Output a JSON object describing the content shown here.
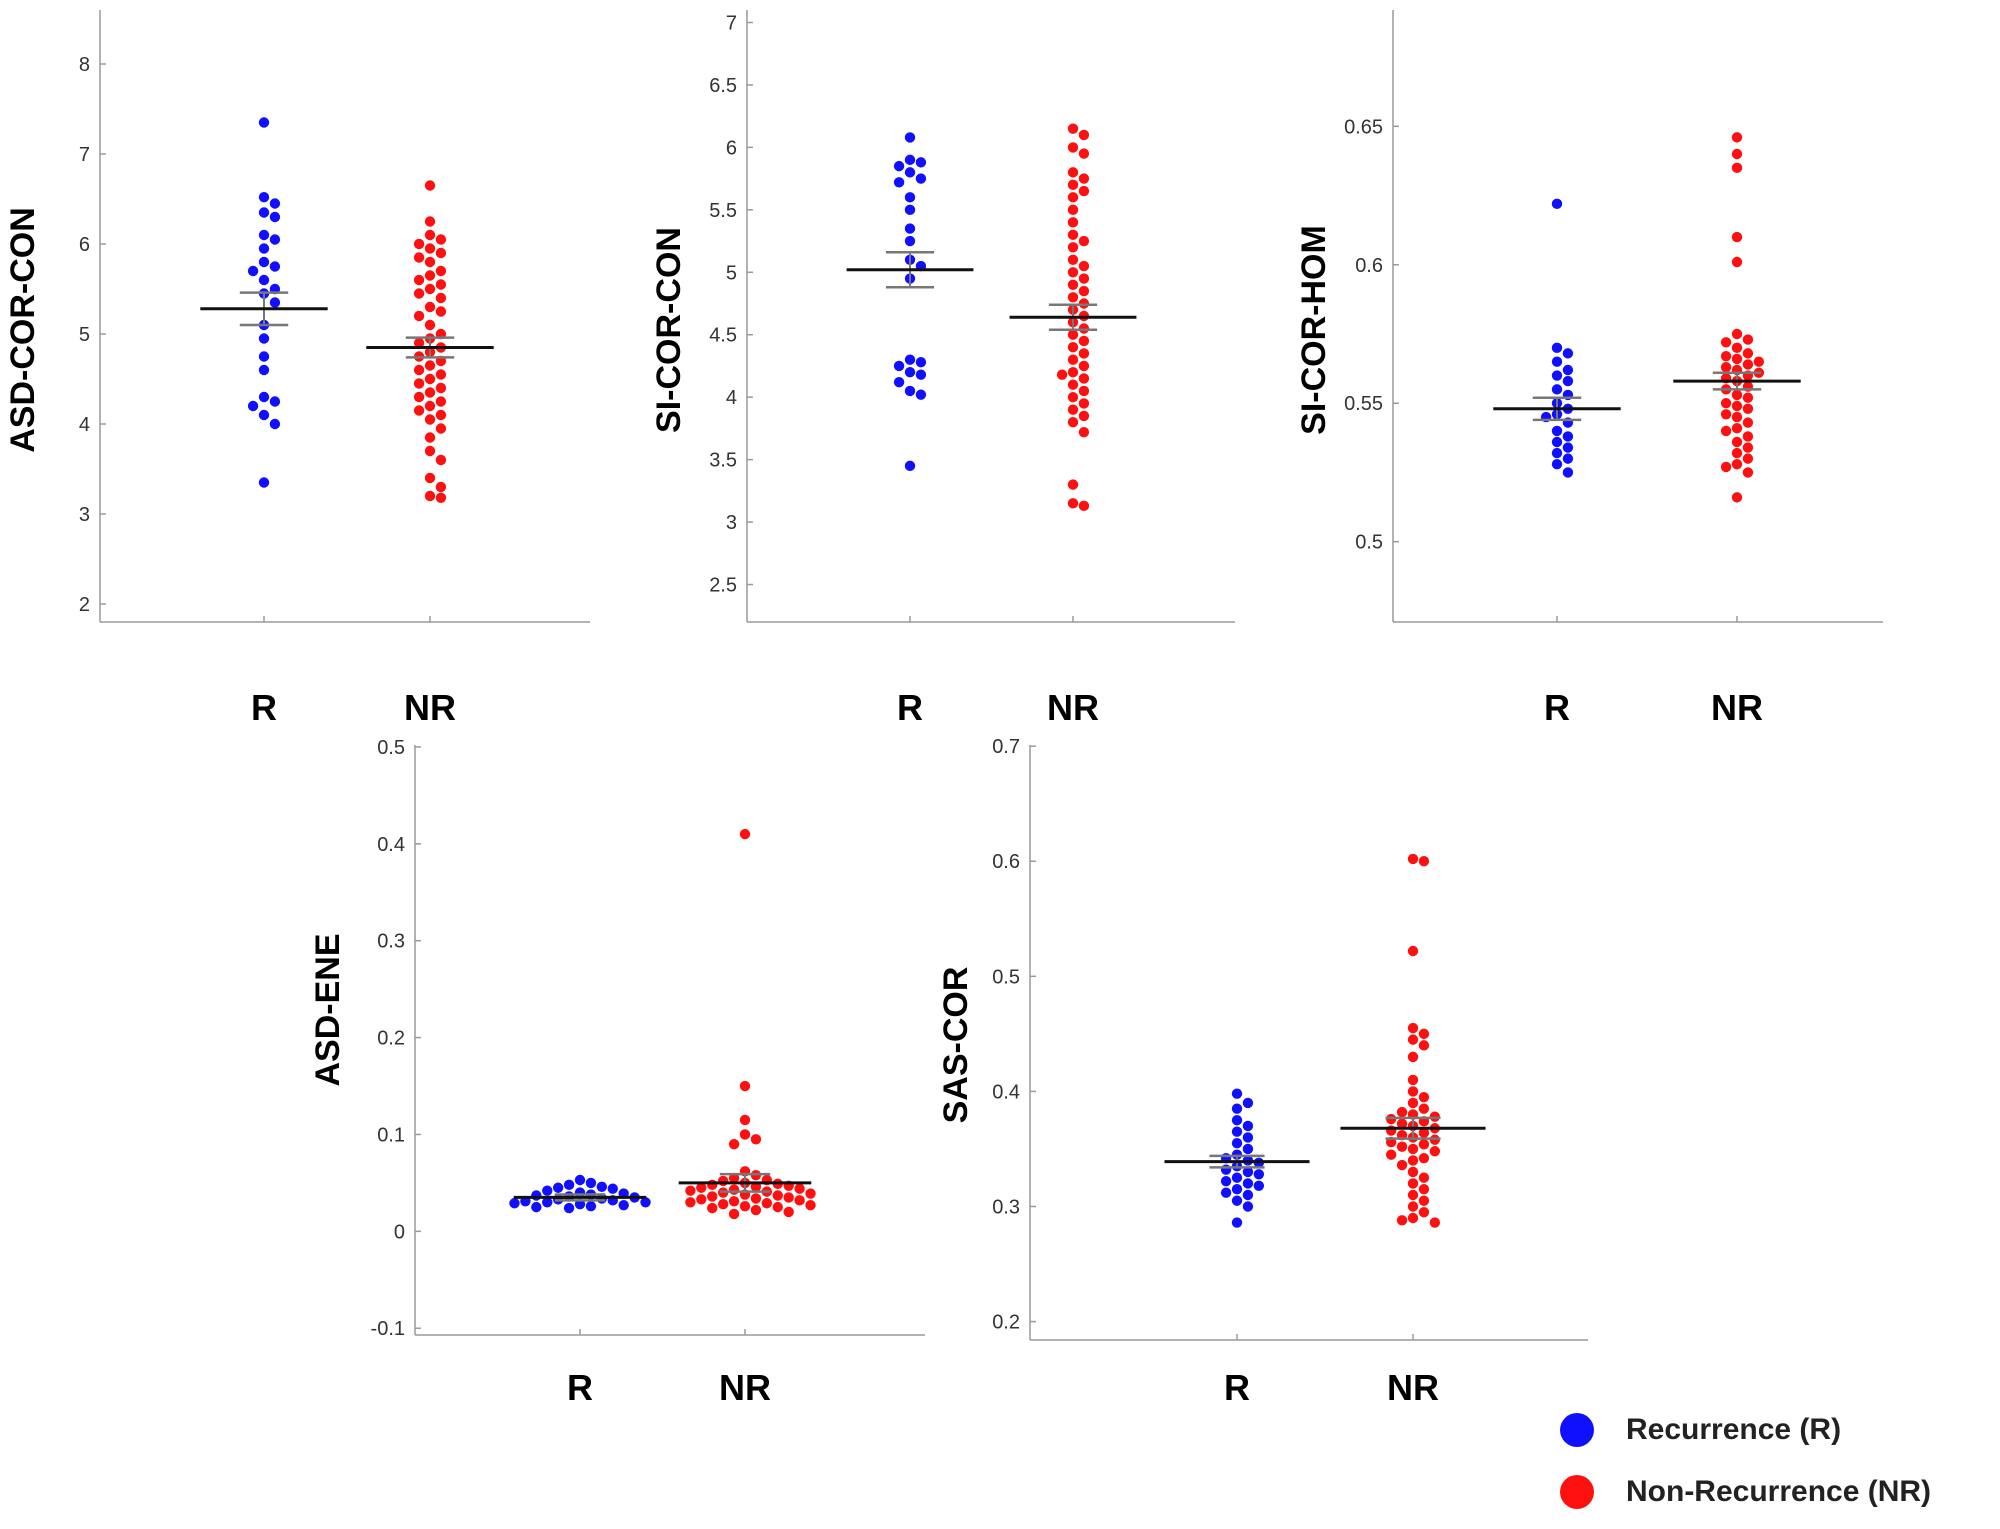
{
  "colors": {
    "recurrence": "#1010ff",
    "non_recurrence": "#ff1010",
    "mean_bar": "#111111",
    "error_bar": "#777777"
  },
  "legend": {
    "recurrence_label": "Recurrence (R)",
    "non_recurrence_label": "Non-Recurrence (NR)"
  },
  "chart_data": [
    {
      "type": "scatter",
      "ylabel": "ASD-COR-CON",
      "categories": [
        "R",
        "NR"
      ],
      "ylim": [
        1.8,
        8.6
      ],
      "yticks": [
        2,
        3,
        4,
        5,
        6,
        7,
        8
      ],
      "series": [
        {
          "name": "Recurrence (R)",
          "category": "R",
          "values": [
            7.35,
            6.52,
            6.45,
            6.35,
            6.3,
            6.1,
            6.05,
            5.95,
            5.8,
            5.75,
            5.7,
            5.6,
            5.5,
            5.45,
            5.35,
            5.1,
            4.95,
            4.75,
            4.6,
            4.3,
            4.25,
            4.2,
            4.1,
            4.0,
            3.35
          ],
          "mean": 5.28,
          "sem": 0.18
        },
        {
          "name": "Non-Recurrence (NR)",
          "category": "NR",
          "values": [
            6.65,
            6.25,
            6.1,
            6.05,
            6.0,
            5.95,
            5.9,
            5.85,
            5.8,
            5.7,
            5.65,
            5.6,
            5.55,
            5.5,
            5.45,
            5.4,
            5.3,
            5.25,
            5.2,
            5.1,
            5.0,
            4.95,
            4.9,
            4.85,
            4.8,
            4.75,
            4.7,
            4.65,
            4.6,
            4.55,
            4.5,
            4.45,
            4.4,
            4.35,
            4.3,
            4.25,
            4.2,
            4.15,
            4.1,
            4.05,
            3.95,
            3.85,
            3.7,
            3.6,
            3.4,
            3.3,
            3.2,
            3.18
          ],
          "mean": 4.85,
          "sem": 0.11
        }
      ]
    },
    {
      "type": "scatter",
      "ylabel": "SI-COR-CON",
      "categories": [
        "R",
        "NR"
      ],
      "ylim": [
        2.2,
        7.1
      ],
      "yticks": [
        2.5,
        3,
        3.5,
        4,
        4.5,
        5,
        5.5,
        6,
        6.5,
        7
      ],
      "series": [
        {
          "name": "Recurrence (R)",
          "category": "R",
          "values": [
            6.08,
            5.9,
            5.88,
            5.85,
            5.8,
            5.75,
            5.72,
            5.6,
            5.5,
            5.35,
            5.25,
            5.1,
            5.05,
            4.95,
            4.3,
            4.28,
            4.25,
            4.2,
            4.18,
            4.12,
            4.05,
            4.02,
            3.45
          ],
          "mean": 5.02,
          "sem": 0.14
        },
        {
          "name": "Non-Recurrence (NR)",
          "category": "NR",
          "values": [
            6.15,
            6.1,
            6.0,
            5.95,
            5.8,
            5.75,
            5.7,
            5.65,
            5.6,
            5.5,
            5.4,
            5.3,
            5.25,
            5.2,
            5.1,
            5.05,
            5.0,
            4.95,
            4.9,
            4.85,
            4.8,
            4.75,
            4.7,
            4.65,
            4.6,
            4.55,
            4.5,
            4.45,
            4.4,
            4.35,
            4.3,
            4.25,
            4.2,
            4.18,
            4.15,
            4.1,
            4.05,
            4.0,
            3.95,
            3.9,
            3.85,
            3.8,
            3.72,
            3.3,
            3.15,
            3.13
          ],
          "mean": 4.64,
          "sem": 0.1
        }
      ]
    },
    {
      "type": "scatter",
      "ylabel": "SI-COR-HOM",
      "categories": [
        "R",
        "NR"
      ],
      "ylim": [
        0.471,
        0.692
      ],
      "yticks": [
        0.5,
        0.55,
        0.6,
        0.65
      ],
      "series": [
        {
          "name": "Recurrence (R)",
          "category": "R",
          "values": [
            0.622,
            0.57,
            0.568,
            0.565,
            0.562,
            0.56,
            0.558,
            0.555,
            0.553,
            0.55,
            0.548,
            0.546,
            0.545,
            0.543,
            0.54,
            0.538,
            0.536,
            0.534,
            0.532,
            0.53,
            0.528,
            0.525
          ],
          "mean": 0.548,
          "sem": 0.004
        },
        {
          "name": "Non-Recurrence (NR)",
          "category": "NR",
          "values": [
            0.646,
            0.64,
            0.635,
            0.61,
            0.601,
            0.575,
            0.573,
            0.572,
            0.57,
            0.568,
            0.567,
            0.566,
            0.565,
            0.564,
            0.563,
            0.562,
            0.561,
            0.56,
            0.559,
            0.558,
            0.556,
            0.555,
            0.553,
            0.552,
            0.55,
            0.549,
            0.548,
            0.546,
            0.545,
            0.543,
            0.541,
            0.54,
            0.538,
            0.536,
            0.534,
            0.532,
            0.53,
            0.528,
            0.527,
            0.525,
            0.516
          ],
          "mean": 0.558,
          "sem": 0.003
        }
      ]
    },
    {
      "type": "scatter",
      "ylabel": "ASD-ENE",
      "categories": [
        "R",
        "NR"
      ],
      "ylim": [
        -0.107,
        0.502
      ],
      "yticks": [
        -0.1,
        0,
        0.1,
        0.2,
        0.3,
        0.4,
        0.5
      ],
      "series": [
        {
          "name": "Recurrence (R)",
          "category": "R",
          "values": [
            0.053,
            0.05,
            0.048,
            0.046,
            0.045,
            0.044,
            0.042,
            0.04,
            0.039,
            0.038,
            0.037,
            0.036,
            0.035,
            0.034,
            0.033,
            0.032,
            0.031,
            0.03,
            0.03,
            0.029,
            0.028,
            0.027,
            0.026,
            0.025,
            0.024
          ],
          "mean": 0.035,
          "sem": 0.003
        },
        {
          "name": "Non-Recurrence (NR)",
          "category": "NR",
          "values": [
            0.41,
            0.15,
            0.115,
            0.1,
            0.095,
            0.09,
            0.062,
            0.058,
            0.055,
            0.053,
            0.052,
            0.05,
            0.049,
            0.048,
            0.047,
            0.046,
            0.045,
            0.044,
            0.043,
            0.042,
            0.041,
            0.04,
            0.039,
            0.038,
            0.037,
            0.036,
            0.035,
            0.034,
            0.033,
            0.032,
            0.031,
            0.03,
            0.029,
            0.028,
            0.027,
            0.026,
            0.025,
            0.024,
            0.022,
            0.02,
            0.018
          ],
          "mean": 0.05,
          "sem": 0.009
        }
      ]
    },
    {
      "type": "scatter",
      "ylabel": "SAS-COR",
      "categories": [
        "R",
        "NR"
      ],
      "ylim": [
        0.184,
        0.701
      ],
      "yticks": [
        0.2,
        0.3,
        0.4,
        0.5,
        0.6,
        0.7
      ],
      "series": [
        {
          "name": "Recurrence (R)",
          "category": "R",
          "values": [
            0.398,
            0.39,
            0.385,
            0.375,
            0.37,
            0.365,
            0.36,
            0.355,
            0.35,
            0.345,
            0.342,
            0.34,
            0.338,
            0.335,
            0.332,
            0.33,
            0.328,
            0.325,
            0.322,
            0.32,
            0.318,
            0.315,
            0.312,
            0.31,
            0.305,
            0.3,
            0.286
          ],
          "mean": 0.339,
          "sem": 0.005
        },
        {
          "name": "Non-Recurrence (NR)",
          "category": "NR",
          "values": [
            0.602,
            0.6,
            0.522,
            0.455,
            0.45,
            0.445,
            0.44,
            0.43,
            0.41,
            0.4,
            0.395,
            0.39,
            0.385,
            0.382,
            0.38,
            0.378,
            0.376,
            0.374,
            0.372,
            0.37,
            0.368,
            0.366,
            0.364,
            0.362,
            0.36,
            0.358,
            0.356,
            0.354,
            0.352,
            0.35,
            0.348,
            0.345,
            0.342,
            0.34,
            0.336,
            0.33,
            0.325,
            0.32,
            0.315,
            0.31,
            0.305,
            0.3,
            0.295,
            0.29,
            0.288,
            0.286
          ],
          "mean": 0.368,
          "sem": 0.009
        }
      ]
    }
  ]
}
